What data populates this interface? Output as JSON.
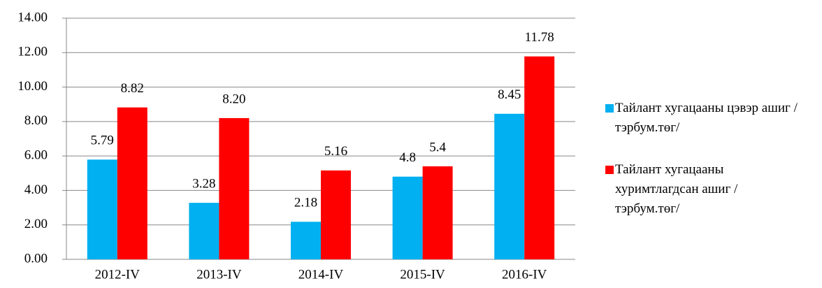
{
  "chart_data": {
    "type": "bar",
    "categories": [
      "2012-IV",
      "2013-IV",
      "2014-IV",
      "2015-IV",
      "2016-IV"
    ],
    "series": [
      {
        "name": "Тайлант хугацааны цэвэр ашиг /тэрбум.төг/",
        "color": "#00b0f0",
        "values": [
          5.79,
          3.28,
          2.18,
          4.8,
          8.45
        ],
        "value_labels": [
          "5.79",
          "3.28",
          "2.18",
          "4.8",
          "8.45"
        ]
      },
      {
        "name": "Тайлант хугацааны хуримтлагдсан ашиг /тэрбум.төг/",
        "color": "#ff0000",
        "values": [
          8.82,
          8.2,
          5.16,
          5.4,
          11.78
        ],
        "value_labels": [
          "8.82",
          "8.20",
          "5.16",
          "5.4",
          "11.78"
        ]
      }
    ],
    "ylim": [
      0,
      14
    ],
    "yticks": [
      {
        "value": 0,
        "label": "0.00"
      },
      {
        "value": 2,
        "label": "2.00"
      },
      {
        "value": 4,
        "label": "4.00"
      },
      {
        "value": 6,
        "label": "6.00"
      },
      {
        "value": 8,
        "label": "8.00"
      },
      {
        "value": 10,
        "label": "10.00"
      },
      {
        "value": 12,
        "label": "12.00"
      },
      {
        "value": 14,
        "label": "14.00"
      }
    ],
    "grid": true,
    "legend": "right"
  }
}
